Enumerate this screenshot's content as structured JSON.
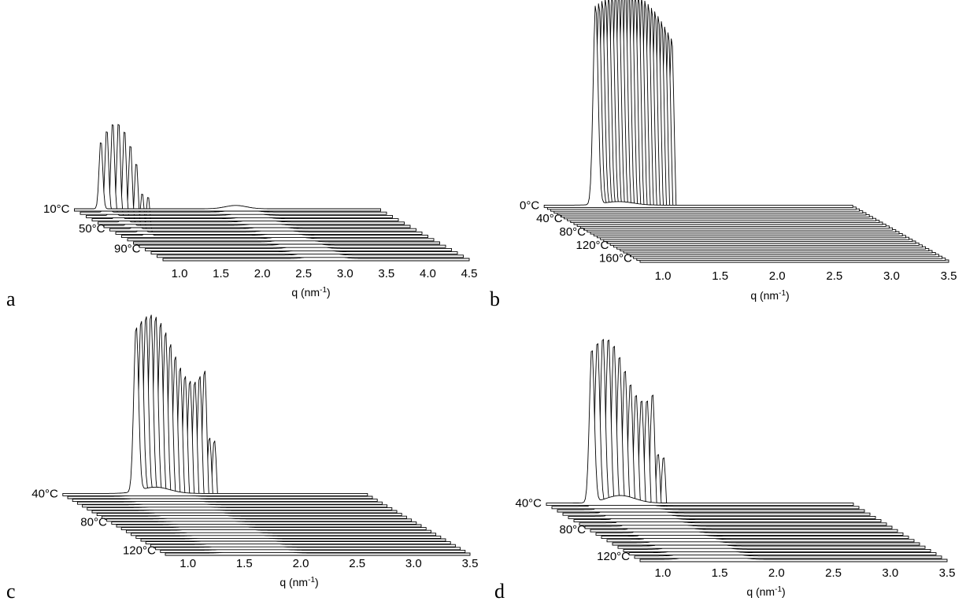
{
  "chart_data": [
    {
      "panel": "a",
      "type": "waterfall",
      "x_ticks": [
        "1.0",
        "1.5",
        "2.0",
        "2.5",
        "3.0",
        "3.5",
        "4.0",
        "4.5"
      ],
      "x_range": [
        0.8,
        4.5
      ],
      "x_label": "q (nm",
      "x_label_sup": "-1",
      "x_label_end": ")",
      "temperature_labels": [
        "10°C",
        "50°C",
        "90°C"
      ],
      "n_traces": 16,
      "peak_q": 1.12,
      "peak_height_range": [
        0,
        0.3
      ],
      "secondary_peak_q": 2.75,
      "secondary_peak_height": 0.02
    },
    {
      "panel": "b",
      "type": "waterfall",
      "x_ticks": [
        "1.0",
        "1.5",
        "2.0",
        "2.5",
        "3.0",
        "3.5"
      ],
      "x_range": [
        0.8,
        3.5
      ],
      "x_label": "q (nm",
      "x_label_sup": "-1",
      "x_label_end": ")",
      "temperature_labels": [
        "0°C",
        "40°C",
        "80°C",
        "120°C",
        "160°C"
      ],
      "n_traces": 30,
      "peak_q": 1.25,
      "peak_height_range": [
        0,
        1.0
      ],
      "secondary_peak_q": 1.45,
      "secondary_peak_height": 0.03
    },
    {
      "panel": "c",
      "type": "waterfall",
      "x_ticks": [
        "1.0",
        "1.5",
        "2.0",
        "2.5",
        "3.0",
        "3.5"
      ],
      "x_range": [
        0.8,
        3.5
      ],
      "x_label": "q (nm",
      "x_label_sup": "-1",
      "x_label_end": ")",
      "temperature_labels": [
        "40°C",
        "80°C",
        "120°C"
      ],
      "n_traces": 22,
      "peak_q": 1.45,
      "peak_height_range": [
        0,
        0.75
      ],
      "secondary_peak_q": 1.62,
      "secondary_peak_height": 0.05
    },
    {
      "panel": "d",
      "type": "waterfall",
      "x_ticks": [
        "1.0",
        "1.5",
        "2.0",
        "2.5",
        "3.0",
        "3.5"
      ],
      "x_range": [
        0.8,
        3.5
      ],
      "x_label": "q (nm",
      "x_label_sup": "-1",
      "x_label_end": ")",
      "temperature_labels": [
        "40°C",
        "80°C",
        "120°C"
      ],
      "n_traces": 18,
      "peak_q": 1.2,
      "peak_height_range": [
        0,
        0.7
      ],
      "secondary_peak_q": 1.45,
      "secondary_peak_height": 0.06
    }
  ],
  "panels": [
    "a",
    "b",
    "c",
    "d"
  ]
}
